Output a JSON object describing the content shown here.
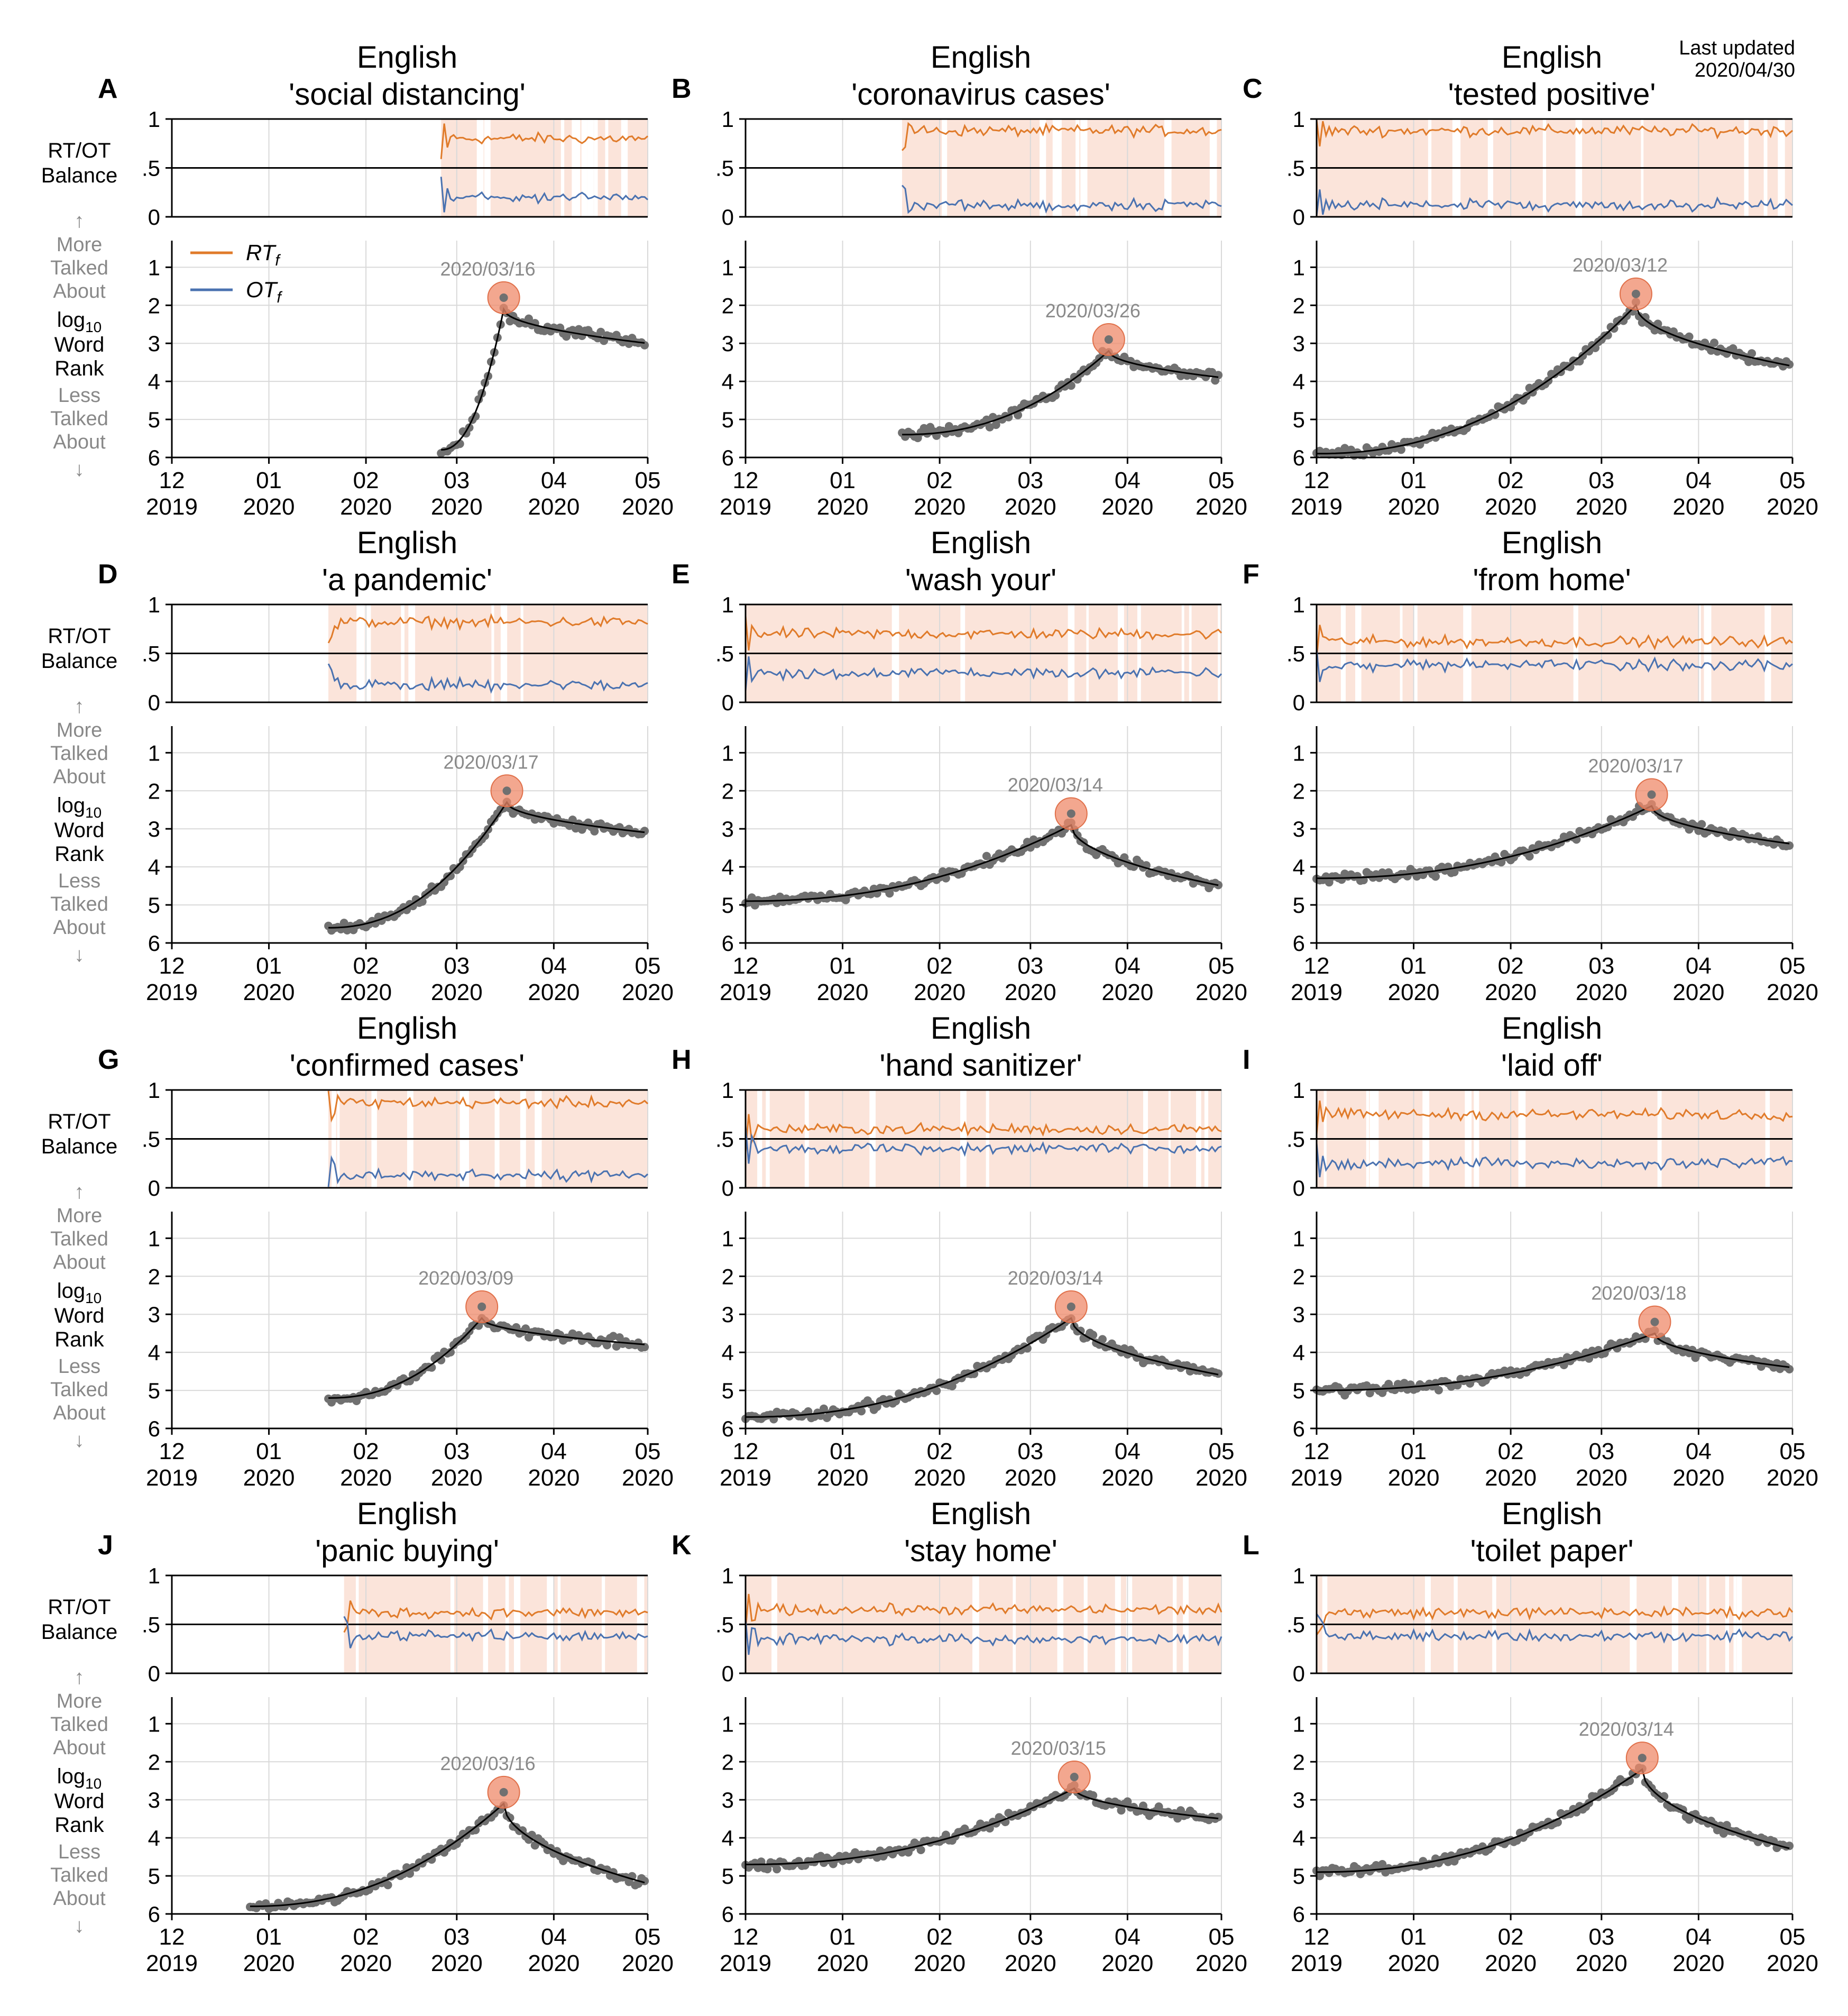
{
  "figure": {
    "last_updated_label": "Last updated",
    "last_updated_date": "2020/04/30",
    "balance_ylabel": [
      "RT/OT",
      "Balance"
    ],
    "rank_ylabel": {
      "up_arrow": "↑",
      "more": [
        "More",
        "Talked",
        "About"
      ],
      "log": "log",
      "log_sub": "10",
      "word_rank": [
        "Word",
        "Rank"
      ],
      "less": [
        "Less",
        "Talked",
        "About"
      ],
      "down_arrow": "↓"
    },
    "legend": [
      {
        "base": "RT",
        "sub": "f",
        "color": "#e07b2a"
      },
      {
        "base": "OT",
        "sub": "f",
        "color": "#4a72b0"
      }
    ],
    "colors": {
      "rt": "#e07b2a",
      "ot": "#4a72b0",
      "shade": "#fbe4da",
      "peak": "#ef8a6a",
      "dots": "#707070",
      "smooth": "#000000",
      "grid": "#d9d9d9",
      "peak_text": "#8a8a8a"
    },
    "balance_ticks": [
      "0",
      ".5",
      "1"
    ],
    "rank_ticks": [
      "1",
      "2",
      "3",
      "4",
      "5",
      "6"
    ],
    "xaxis_date_range": [
      "2019-12-01",
      "2020-05-01"
    ],
    "xticks": [
      {
        "date": "2019-12-01",
        "top": "12",
        "bottom": "2019"
      },
      {
        "date": "2020-01-01",
        "top": "01",
        "bottom": "2020"
      },
      {
        "date": "2020-02-01",
        "top": "02",
        "bottom": "2020"
      },
      {
        "date": "2020-03-01",
        "top": "03",
        "bottom": "2020"
      },
      {
        "date": "2020-04-01",
        "top": "04",
        "bottom": "2020"
      },
      {
        "date": "2020-05-01",
        "top": "05",
        "bottom": "2020"
      }
    ]
  },
  "chart_data": [
    {
      "type": "line",
      "panel": "A",
      "language": "English",
      "ngram": "'social distancing'",
      "start": "2020-02-25",
      "start_rank": 5.8,
      "peak_date": "2020-03-16",
      "peak_rank": 1.8,
      "end_rank": 3.0,
      "balance_start": "2020-02-25",
      "rt_balance": 0.8,
      "tick_dates": [
        "2019-12-01",
        "2020-01-01",
        "2020-02-01",
        "2020-03-01",
        "2020-04-01",
        "2020-05-01"
      ]
    },
    {
      "type": "line",
      "panel": "B",
      "language": "English",
      "ngram": "'coronavirus cases'",
      "start": "2020-01-20",
      "start_rank": 5.4,
      "peak_date": "2020-03-26",
      "peak_rank": 2.9,
      "end_rank": 3.9,
      "balance_start": "2020-01-20",
      "rt_balance": 0.88,
      "tick_dates": [
        "2019-12-01",
        "2020-01-01",
        "2020-02-01",
        "2020-03-01",
        "2020-04-01",
        "2020-05-01"
      ]
    },
    {
      "type": "line",
      "panel": "C",
      "language": "English",
      "ngram": "'tested positive'",
      "start": "2019-12-01",
      "start_rank": 5.9,
      "peak_date": "2020-03-12",
      "peak_rank": 1.7,
      "end_rank": 3.6,
      "balance_start": "2019-12-01",
      "rt_balance": 0.88,
      "tick_dates": [
        "2019-12-01",
        "2020-01-01",
        "2020-02-01",
        "2020-03-01",
        "2020-04-01",
        "2020-05-01"
      ]
    },
    {
      "type": "line",
      "panel": "D",
      "language": "English",
      "ngram": "'a pandemic'",
      "start": "2020-01-20",
      "start_rank": 5.6,
      "peak_date": "2020-03-17",
      "peak_rank": 2.0,
      "end_rank": 3.1,
      "balance_start": "2020-01-20",
      "rt_balance": 0.82,
      "tick_dates": [
        "2019-12-01",
        "2020-01-01",
        "2020-02-01",
        "2020-03-01",
        "2020-04-01",
        "2020-05-01"
      ]
    },
    {
      "type": "line",
      "panel": "E",
      "language": "English",
      "ngram": "'wash your'",
      "start": "2019-12-01",
      "start_rank": 4.9,
      "peak_date": "2020-03-14",
      "peak_rank": 2.6,
      "end_rank": 4.5,
      "balance_start": "2019-12-01",
      "rt_balance": 0.7,
      "tick_dates": [
        "2019-12-01",
        "2020-01-01",
        "2020-02-01",
        "2020-03-01",
        "2020-04-01",
        "2020-05-01"
      ]
    },
    {
      "type": "line",
      "panel": "F",
      "language": "English",
      "ngram": "'from home'",
      "start": "2019-12-01",
      "start_rank": 4.3,
      "peak_date": "2020-03-17",
      "peak_rank": 2.1,
      "end_rank": 3.4,
      "balance_start": "2019-12-01",
      "rt_balance": 0.62,
      "tick_dates": [
        "2019-12-01",
        "2020-01-01",
        "2020-02-01",
        "2020-03-01",
        "2020-04-01",
        "2020-05-01"
      ]
    },
    {
      "type": "line",
      "panel": "G",
      "language": "English",
      "ngram": "'confirmed cases'",
      "start": "2020-01-20",
      "start_rank": 5.2,
      "peak_date": "2020-03-09",
      "peak_rank": 2.8,
      "end_rank": 3.8,
      "balance_start": "2020-01-20",
      "rt_balance": 0.87,
      "tick_dates": [
        "2019-12-01",
        "2020-01-01",
        "2020-02-01",
        "2020-03-01",
        "2020-04-01",
        "2020-05-01"
      ]
    },
    {
      "type": "line",
      "panel": "H",
      "language": "English",
      "ngram": "'hand sanitizer'",
      "start": "2019-12-01",
      "start_rank": 5.7,
      "peak_date": "2020-03-14",
      "peak_rank": 2.8,
      "end_rank": 4.6,
      "balance_start": "2019-12-01",
      "rt_balance": 0.6,
      "tick_dates": [
        "2019-12-01",
        "2020-01-01",
        "2020-02-01",
        "2020-03-01",
        "2020-04-01",
        "2020-05-01"
      ]
    },
    {
      "type": "line",
      "panel": "I",
      "language": "English",
      "ngram": "'laid off'",
      "start": "2019-12-01",
      "start_rank": 5.0,
      "peak_date": "2020-03-18",
      "peak_rank": 3.2,
      "end_rank": 4.4,
      "balance_start": "2019-12-01",
      "rt_balance": 0.75,
      "tick_dates": [
        "2019-12-01",
        "2020-01-01",
        "2020-02-01",
        "2020-03-01",
        "2020-04-01",
        "2020-05-01"
      ]
    },
    {
      "type": "line",
      "panel": "J",
      "language": "English",
      "ngram": "'panic buying'",
      "start": "2019-12-26",
      "start_rank": 5.8,
      "peak_date": "2020-03-16",
      "peak_rank": 2.8,
      "end_rank": 5.2,
      "balance_start": "2020-01-25",
      "rt_balance": 0.62,
      "tick_dates": [
        "2019-12-01",
        "2020-01-01",
        "2020-02-01",
        "2020-03-01",
        "2020-04-01",
        "2020-05-01"
      ]
    },
    {
      "type": "line",
      "panel": "K",
      "language": "English",
      "ngram": "'stay home'",
      "start": "2019-12-01",
      "start_rank": 4.7,
      "peak_date": "2020-03-15",
      "peak_rank": 2.4,
      "end_rank": 3.5,
      "balance_start": "2019-12-01",
      "rt_balance": 0.65,
      "tick_dates": [
        "2019-12-01",
        "2020-01-01",
        "2020-02-01",
        "2020-03-01",
        "2020-04-01",
        "2020-05-01"
      ]
    },
    {
      "type": "line",
      "panel": "L",
      "language": "English",
      "ngram": "'toilet paper'",
      "start": "2019-12-01",
      "start_rank": 4.9,
      "peak_date": "2020-03-14",
      "peak_rank": 1.9,
      "end_rank": 4.3,
      "balance_start": "2019-12-01",
      "rt_balance": 0.62,
      "tick_dates": [
        "2019-12-01",
        "2020-01-01",
        "2020-02-01",
        "2020-03-01",
        "2020-04-01",
        "2020-05-01"
      ]
    }
  ]
}
